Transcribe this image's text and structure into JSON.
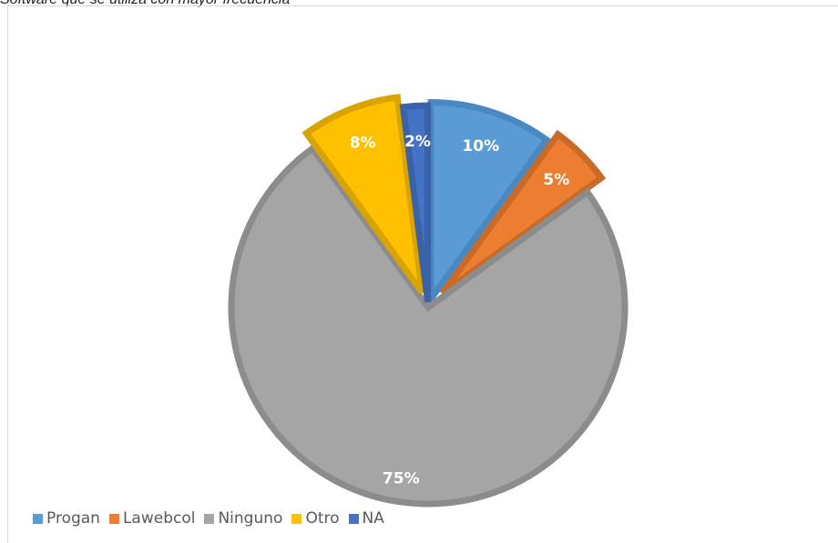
{
  "caption": "Software que se utiliza con mayor frecuencia",
  "chart_data": {
    "type": "pie",
    "title": "",
    "categories": [
      "Progan",
      "Lawebcol",
      "Ninguno",
      "Otro",
      "NA"
    ],
    "values": [
      10,
      5,
      75,
      8,
      2
    ],
    "labels": [
      "10%",
      "5%",
      "75%",
      "8%",
      "2%"
    ],
    "colors": [
      "#5b9bd5",
      "#ed7d31",
      "#a5a5a5",
      "#ffc000",
      "#4472c4"
    ],
    "exploded": true,
    "legend_position": "bottom-left"
  }
}
